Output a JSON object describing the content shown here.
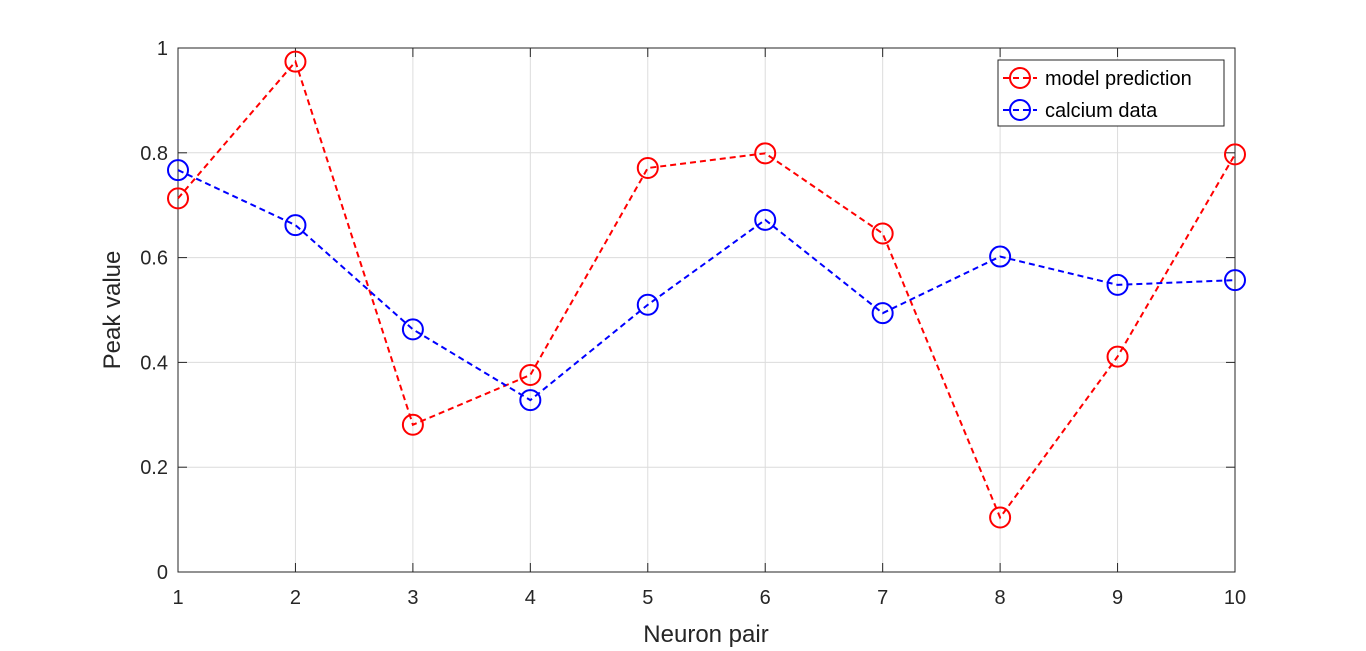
{
  "chart_data": {
    "type": "line",
    "xlabel": "Neuron pair",
    "ylabel": "Peak value",
    "x": [
      1,
      2,
      3,
      4,
      5,
      6,
      7,
      8,
      9,
      10
    ],
    "xlim": [
      1,
      10
    ],
    "ylim": [
      0,
      1
    ],
    "xticks": [
      1,
      2,
      3,
      4,
      5,
      6,
      7,
      8,
      9,
      10
    ],
    "yticks": [
      0,
      0.2,
      0.4,
      0.6,
      0.8,
      1
    ],
    "ytick_labels": [
      "0",
      "0.2",
      "0.4",
      "0.6",
      "0.8",
      "1"
    ],
    "grid": true,
    "legend_position": "top-right",
    "series": [
      {
        "name": "model prediction",
        "color": "#ff0000",
        "line_style": "dashed",
        "marker": "circle",
        "values": [
          0.713,
          0.974,
          0.281,
          0.376,
          0.771,
          0.799,
          0.646,
          0.104,
          0.411,
          0.797
        ]
      },
      {
        "name": "calcium data",
        "color": "#0000ff",
        "line_style": "dashed",
        "marker": "circle",
        "values": [
          0.767,
          0.662,
          0.463,
          0.328,
          0.51,
          0.672,
          0.494,
          0.602,
          0.548,
          0.557
        ]
      }
    ]
  }
}
